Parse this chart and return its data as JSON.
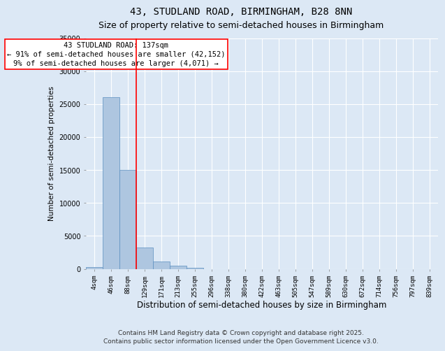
{
  "title": "43, STUDLAND ROAD, BIRMINGHAM, B28 8NN",
  "subtitle": "Size of property relative to semi-detached houses in Birmingham",
  "xlabel": "Distribution of semi-detached houses by size in Birmingham",
  "ylabel": "Number of semi-detached properties",
  "categories": [
    "4sqm",
    "46sqm",
    "88sqm",
    "129sqm",
    "171sqm",
    "213sqm",
    "255sqm",
    "296sqm",
    "338sqm",
    "380sqm",
    "422sqm",
    "463sqm",
    "505sqm",
    "547sqm",
    "589sqm",
    "630sqm",
    "672sqm",
    "714sqm",
    "756sqm",
    "797sqm",
    "839sqm"
  ],
  "values": [
    300,
    26000,
    15000,
    3200,
    1100,
    500,
    130,
    0,
    0,
    0,
    0,
    0,
    0,
    0,
    0,
    0,
    0,
    0,
    0,
    0,
    0
  ],
  "bar_color": "#aec6e0",
  "bar_edgecolor": "#5a8fc0",
  "property_line_x": 2.5,
  "property_line_color": "red",
  "annotation_text": "43 STUDLAND ROAD: 137sqm\n← 91% of semi-detached houses are smaller (42,152)\n9% of semi-detached houses are larger (4,071) →",
  "annotation_box_color": "white",
  "annotation_box_edgecolor": "red",
  "ylim": [
    0,
    35000
  ],
  "yticks": [
    0,
    5000,
    10000,
    15000,
    20000,
    25000,
    30000,
    35000
  ],
  "background_color": "#dce8f5",
  "grid_color": "white",
  "footer_line1": "Contains HM Land Registry data © Crown copyright and database right 2025.",
  "footer_line2": "Contains public sector information licensed under the Open Government Licence v3.0.",
  "title_fontsize": 10,
  "subtitle_fontsize": 9,
  "annotation_fontsize": 7.5,
  "footer_fontsize": 6.5,
  "ylabel_fontsize": 7.5,
  "xlabel_fontsize": 8.5
}
